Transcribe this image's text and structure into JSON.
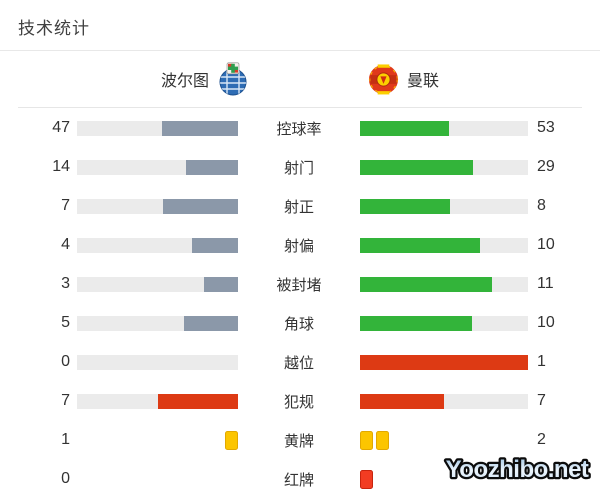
{
  "title": "技术统计",
  "header": {
    "home_team": "波尔图",
    "away_team": "曼联",
    "home_crest_icon": "porto-crest",
    "away_crest_icon": "man-united-crest"
  },
  "colors": {
    "home_bar": "#8b98a9",
    "away_bar": "#33b43a",
    "negative_bar": "#dd3a14",
    "track": "#ebebeb",
    "yellow_card": "#fcc500",
    "yellow_card_border": "#e2a800",
    "red_card": "#f23c22",
    "red_card_border": "#c7240e"
  },
  "rows": [
    {
      "label": "控球率",
      "home": 47,
      "away": 53,
      "home_text": "47",
      "away_text": "53",
      "type": "normal"
    },
    {
      "label": "射门",
      "home": 14,
      "away": 29,
      "home_text": "14",
      "away_text": "29",
      "type": "normal"
    },
    {
      "label": "射正",
      "home": 7,
      "away": 8,
      "home_text": "7",
      "away_text": "8",
      "type": "normal"
    },
    {
      "label": "射偏",
      "home": 4,
      "away": 10,
      "home_text": "4",
      "away_text": "10",
      "type": "normal"
    },
    {
      "label": "被封堵",
      "home": 3,
      "away": 11,
      "home_text": "3",
      "away_text": "11",
      "type": "normal"
    },
    {
      "label": "角球",
      "home": 5,
      "away": 10,
      "home_text": "5",
      "away_text": "10",
      "type": "normal"
    },
    {
      "label": "越位",
      "home": 0,
      "away": 1,
      "home_text": "0",
      "away_text": "1",
      "type": "negative"
    },
    {
      "label": "犯规",
      "home": 7,
      "away": 7,
      "home_text": "7",
      "away_text": "7",
      "type": "negative"
    },
    {
      "label": "黄牌",
      "home": 1,
      "away": 2,
      "home_text": "1",
      "away_text": "2",
      "type": "cards",
      "card": "yellow",
      "home_cards": 1,
      "away_cards": 2
    },
    {
      "label": "红牌",
      "home": 0,
      "away": null,
      "home_text": "0",
      "away_text": "",
      "type": "cards",
      "card": "red",
      "home_cards": 0,
      "away_cards": 1
    }
  ],
  "watermark": "Yoozhibo.net",
  "chart_data": {
    "type": "bar",
    "orientation": "horizontal-paired",
    "title": "技术统计",
    "categories": [
      "控球率",
      "射门",
      "射正",
      "射偏",
      "被封堵",
      "角球",
      "越位",
      "犯规",
      "黄牌",
      "红牌"
    ],
    "series": [
      {
        "name": "波尔图",
        "values": [
          47,
          14,
          7,
          4,
          3,
          5,
          0,
          7,
          1,
          0
        ]
      },
      {
        "name": "曼联",
        "values": [
          53,
          29,
          8,
          10,
          11,
          10,
          1,
          7,
          2,
          null
        ]
      }
    ],
    "bar_scaling": "each row fill = value / (home + away)",
    "legend_position": "top",
    "notes": "rows 越位/犯规 drawn in red; 黄牌/红牌 shown as card icons (away red-card count hidden behind watermark, one red card icon visible)"
  }
}
